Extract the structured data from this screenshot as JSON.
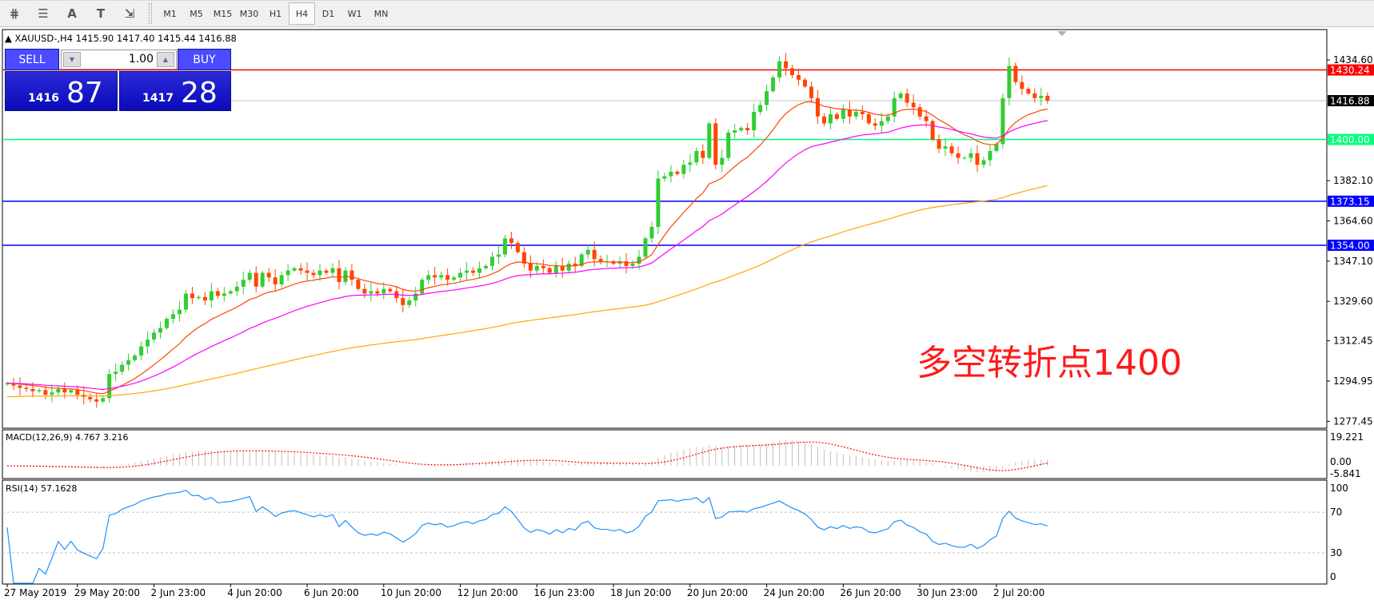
{
  "toolbar": {
    "icons": [
      "fibo-expansion-icon",
      "fibo-fan-icon",
      "text-icon",
      "text-label-icon",
      "arrows-icon"
    ],
    "icon_glyphs": [
      "⋕",
      "☰",
      "A",
      "T",
      "⇲"
    ],
    "timeframes": [
      "M1",
      "M5",
      "M15",
      "M30",
      "H1",
      "H4",
      "D1",
      "W1",
      "MN"
    ],
    "active_timeframe": "H4"
  },
  "chart_header": "XAUUSD-,H4  1415.90 1417.40 1415.44 1416.88",
  "trade_panel": {
    "sell_label": "SELL",
    "buy_label": "BUY",
    "lot": "1.00",
    "sell_small": "1416",
    "sell_big": "87",
    "buy_small": "1417",
    "buy_big": "28"
  },
  "annotation": "多空转折点1400",
  "colors": {
    "bull": "#32cd32",
    "bear": "#ff4500",
    "ma_fast": "#ff4500",
    "ma_mid": "#ff00ff",
    "ma_slow": "#ffa500",
    "rsi": "#1e90ff",
    "macd_signal": "#ff0000",
    "macd_hist": "#c0c0c0"
  },
  "chart_data": {
    "type": "candlestick",
    "symbol": "XAUUSD-",
    "timeframe": "H4",
    "ylim": [
      1274.4,
      1447.8
    ],
    "y_ticks": [
      "1434.60",
      "1382.10",
      "1364.60",
      "1347.10",
      "1329.60",
      "1312.45",
      "1294.95",
      "1277.45"
    ],
    "y_tick_values": [
      1434.6,
      1382.1,
      1364.6,
      1347.1,
      1329.6,
      1312.45,
      1294.95,
      1277.45
    ],
    "x_ticks": [
      "27 May 2019",
      "29 May 20:00",
      "2 Jun 23:00",
      "4 Jun 20:00",
      "6 Jun 20:00",
      "10 Jun 20:00",
      "12 Jun 20:00",
      "16 Jun 23:00",
      "18 Jun 20:00",
      "20 Jun 20:00",
      "24 Jun 20:00",
      "26 Jun 20:00",
      "30 Jun 23:00",
      "2 Jul 20:00"
    ],
    "x_tick_bars": [
      0,
      11,
      23,
      35,
      47,
      59,
      71,
      83,
      95,
      107,
      119,
      131,
      143,
      155
    ],
    "hlines": [
      {
        "price": 1430.24,
        "label": "1430.24",
        "color": "#ff0000"
      },
      {
        "price": 1416.88,
        "label": "1416.88",
        "color": "#c0c0c0",
        "label_bg": "#000000"
      },
      {
        "price": 1400.0,
        "label": "1400.00",
        "color": "#00ff7f"
      },
      {
        "price": 1373.15,
        "label": "1373.15",
        "color": "#0000ff"
      },
      {
        "price": 1354.0,
        "label": "1354.00",
        "color": "#0000ff"
      }
    ],
    "close": [
      1294,
      1293,
      1292,
      1291.5,
      1290.5,
      1291,
      1289,
      1290,
      1291.5,
      1290,
      1291,
      1289,
      1288,
      1287,
      1286,
      1287.5,
      1298,
      1299,
      1302,
      1304,
      1306,
      1310,
      1313,
      1316,
      1318,
      1322,
      1324,
      1326,
      1333,
      1331,
      1331.5,
      1330,
      1334,
      1332,
      1333,
      1334,
      1336,
      1339,
      1342,
      1336,
      1342,
      1340,
      1337,
      1341,
      1343,
      1344,
      1343,
      1342,
      1341,
      1343,
      1342,
      1344,
      1338,
      1343,
      1339,
      1335,
      1333,
      1334,
      1333,
      1335,
      1334,
      1331,
      1328,
      1330,
      1333,
      1339,
      1341,
      1340,
      1341,
      1339,
      1340,
      1342,
      1343,
      1342,
      1344,
      1345,
      1349,
      1350,
      1357,
      1355,
      1351,
      1346,
      1343,
      1345,
      1344,
      1342,
      1345,
      1343,
      1346,
      1345,
      1350,
      1352,
      1348,
      1347,
      1347,
      1346,
      1347,
      1345,
      1346,
      1349,
      1357,
      1362,
      1383,
      1384,
      1386,
      1385,
      1389,
      1390,
      1395,
      1392,
      1407,
      1389,
      1392,
      1403,
      1404,
      1405,
      1404,
      1412,
      1415,
      1421,
      1427,
      1434,
      1431,
      1428,
      1426,
      1423,
      1418,
      1410,
      1407,
      1411,
      1409,
      1413,
      1410,
      1412,
      1411,
      1407,
      1406,
      1408,
      1410,
      1418,
      1420,
      1416,
      1414,
      1410,
      1408,
      1400,
      1396,
      1397,
      1394,
      1392,
      1392,
      1394,
      1389,
      1391,
      1395,
      1398,
      1418,
      1432,
      1425,
      1422,
      1420,
      1418,
      1419,
      1416.88
    ],
    "first_open": 1293.5,
    "macd": {
      "label": "MACD(12,26,9) 4.767 3.216",
      "ylim": [
        -5.841,
        19.221
      ],
      "ticks": [
        "19.221",
        "0.00",
        "-5.841"
      ]
    },
    "rsi": {
      "label": "RSI(14) 57.1628",
      "levels": [
        70,
        30
      ],
      "ticks": [
        "100",
        "70",
        "30",
        "0"
      ]
    }
  }
}
